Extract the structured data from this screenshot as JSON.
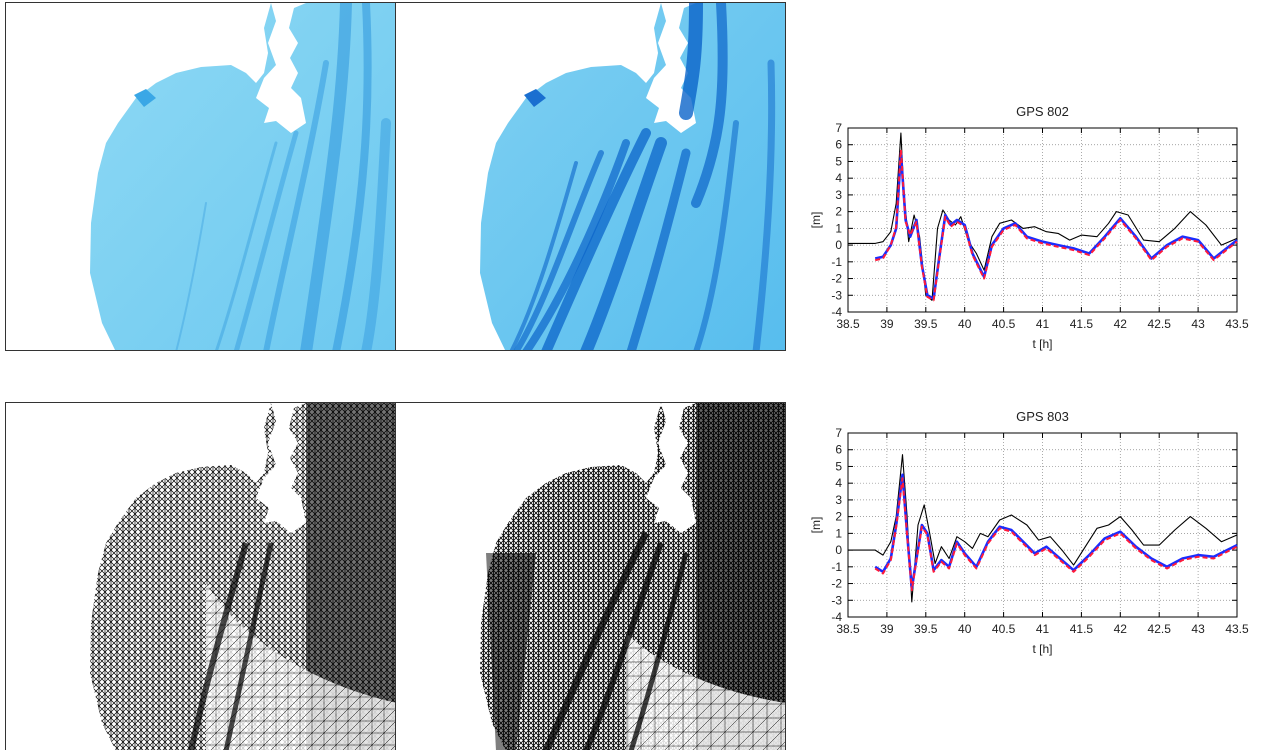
{
  "colors": {
    "water_light": "#7fd3f1",
    "water_mid": "#3aa7e6",
    "water_dark": "#0b64c9",
    "mesh": "#000000",
    "observed": "#000000",
    "model_blue": "#1a2cff",
    "model_red": "#ff1a3a"
  },
  "chart_data": [
    {
      "type": "line",
      "title": "GPS 802",
      "xlabel": "t [h]",
      "ylabel": "[m]",
      "xlim": [
        38.5,
        43.5
      ],
      "ylim": [
        -4,
        7
      ],
      "xticks": [
        "38.5",
        "39",
        "39.5",
        "40",
        "40.5",
        "41",
        "41.5",
        "42",
        "42.5",
        "43",
        "43.5"
      ],
      "yticks": [
        "-4",
        "-3",
        "-2",
        "-1",
        "0",
        "1",
        "2",
        "3",
        "4",
        "5",
        "6",
        "7"
      ],
      "grid": true,
      "series": [
        {
          "color": "#000000",
          "x": [
            38.5,
            38.85,
            38.95,
            39.05,
            39.12,
            39.18,
            39.22,
            39.28,
            39.35,
            39.42,
            39.5,
            39.58,
            39.65,
            39.72,
            39.8,
            39.88,
            39.95,
            40.05,
            40.15,
            40.25,
            40.35,
            40.45,
            40.6,
            40.75,
            40.9,
            41.05,
            41.2,
            41.35,
            41.5,
            41.7,
            41.85,
            41.95,
            42.1,
            42.3,
            42.5,
            42.7,
            42.9,
            43.1,
            43.3,
            43.5
          ],
          "y": [
            0.1,
            0.1,
            0.2,
            0.8,
            2.5,
            6.7,
            3.0,
            0.2,
            1.8,
            0.5,
            -3.0,
            -3.3,
            1.0,
            2.1,
            1.5,
            1.2,
            1.7,
            0.2,
            -0.5,
            -1.5,
            0.5,
            1.3,
            1.5,
            1.0,
            1.1,
            0.8,
            0.7,
            0.3,
            0.6,
            0.5,
            1.3,
            2.0,
            1.8,
            0.3,
            0.2,
            1.0,
            2.0,
            1.2,
            0.0,
            0.4
          ]
        },
        {
          "color": "#1a2cff",
          "x": [
            38.85,
            38.95,
            39.05,
            39.12,
            39.18,
            39.24,
            39.3,
            39.38,
            39.45,
            39.52,
            39.6,
            39.68,
            39.75,
            39.82,
            39.9,
            40.0,
            40.1,
            40.25,
            40.35,
            40.5,
            40.65,
            40.8,
            41.0,
            41.2,
            41.4,
            41.6,
            41.8,
            42.0,
            42.2,
            42.4,
            42.6,
            42.8,
            43.0,
            43.2,
            43.5
          ],
          "y": [
            -0.8,
            -0.7,
            0.0,
            1.0,
            5.5,
            1.5,
            0.5,
            1.5,
            -1.2,
            -3.0,
            -3.2,
            -0.5,
            1.8,
            1.2,
            1.5,
            1.2,
            -0.5,
            -1.9,
            0.0,
            1.0,
            1.3,
            0.5,
            0.2,
            0.0,
            -0.2,
            -0.5,
            0.5,
            1.6,
            0.5,
            -0.8,
            0.0,
            0.5,
            0.3,
            -0.8,
            0.3
          ]
        },
        {
          "color": "#ff1a3a",
          "x": [
            38.85,
            38.95,
            39.05,
            39.12,
            39.18,
            39.24,
            39.3,
            39.38,
            39.45,
            39.52,
            39.6,
            39.68,
            39.75,
            39.82,
            39.9,
            40.0,
            40.1,
            40.25,
            40.35,
            40.5,
            40.65,
            40.8,
            41.0,
            41.2,
            41.4,
            41.6,
            41.8,
            42.0,
            42.2,
            42.4,
            42.6,
            42.8,
            43.0,
            43.2,
            43.5
          ],
          "y": [
            -0.9,
            -0.8,
            0.0,
            1.1,
            5.7,
            1.4,
            0.6,
            1.4,
            -1.3,
            -3.1,
            -3.3,
            -0.6,
            1.7,
            1.1,
            1.4,
            1.1,
            -0.6,
            -2.0,
            -0.1,
            0.9,
            1.2,
            0.4,
            0.1,
            -0.1,
            -0.3,
            -0.6,
            0.4,
            1.5,
            0.4,
            -0.9,
            -0.1,
            0.4,
            0.2,
            -0.9,
            0.2
          ]
        }
      ]
    },
    {
      "type": "line",
      "title": "GPS 803",
      "xlabel": "t [h]",
      "ylabel": "[m]",
      "xlim": [
        38.5,
        43.5
      ],
      "ylim": [
        -4,
        7
      ],
      "xticks": [
        "38.5",
        "39",
        "39.5",
        "40",
        "40.5",
        "41",
        "41.5",
        "42",
        "42.5",
        "43",
        "43.5"
      ],
      "yticks": [
        "-4",
        "-3",
        "-2",
        "-1",
        "0",
        "1",
        "2",
        "3",
        "4",
        "5",
        "6",
        "7"
      ],
      "grid": true,
      "series": [
        {
          "color": "#000000",
          "x": [
            38.5,
            38.85,
            38.95,
            39.05,
            39.12,
            39.2,
            39.26,
            39.32,
            39.4,
            39.48,
            39.55,
            39.62,
            39.7,
            39.8,
            39.9,
            40.0,
            40.1,
            40.2,
            40.3,
            40.45,
            40.6,
            40.8,
            40.95,
            41.1,
            41.25,
            41.4,
            41.55,
            41.7,
            41.85,
            42.0,
            42.15,
            42.3,
            42.5,
            42.7,
            42.9,
            43.1,
            43.3,
            43.5
          ],
          "y": [
            0.0,
            0.0,
            -0.3,
            0.5,
            2.0,
            5.7,
            2.0,
            -3.1,
            1.5,
            2.7,
            1.0,
            -0.8,
            0.2,
            -0.5,
            0.8,
            0.5,
            0.1,
            1.0,
            0.8,
            1.8,
            2.1,
            1.5,
            0.6,
            0.8,
            0.0,
            -0.9,
            0.2,
            1.3,
            1.5,
            2.0,
            1.2,
            0.3,
            0.3,
            1.2,
            2.0,
            1.3,
            0.5,
            0.9
          ]
        },
        {
          "color": "#1a2cff",
          "x": [
            38.85,
            38.95,
            39.05,
            39.12,
            39.2,
            39.26,
            39.32,
            39.38,
            39.45,
            39.52,
            39.6,
            39.7,
            39.8,
            39.9,
            40.0,
            40.15,
            40.3,
            40.45,
            40.6,
            40.75,
            40.9,
            41.05,
            41.2,
            41.4,
            41.6,
            41.8,
            42.0,
            42.2,
            42.4,
            42.6,
            42.8,
            43.0,
            43.2,
            43.5
          ],
          "y": [
            -1.0,
            -1.3,
            -0.5,
            1.5,
            4.5,
            1.0,
            -2.3,
            -0.5,
            1.5,
            1.0,
            -1.2,
            -0.6,
            -1.0,
            0.5,
            -0.2,
            -1.0,
            0.5,
            1.4,
            1.2,
            0.5,
            -0.2,
            0.2,
            -0.4,
            -1.2,
            -0.3,
            0.7,
            1.1,
            0.2,
            -0.5,
            -1.0,
            -0.5,
            -0.3,
            -0.4,
            0.3
          ]
        },
        {
          "color": "#ff1a3a",
          "x": [
            38.85,
            38.95,
            39.05,
            39.12,
            39.2,
            39.26,
            39.32,
            39.38,
            39.45,
            39.52,
            39.6,
            39.7,
            39.8,
            39.9,
            40.0,
            40.15,
            40.3,
            40.45,
            40.6,
            40.75,
            40.9,
            41.05,
            41.2,
            41.4,
            41.6,
            41.8,
            42.0,
            42.2,
            42.4,
            42.6,
            42.8,
            43.0,
            43.2,
            43.5
          ],
          "y": [
            -1.1,
            -1.4,
            -0.6,
            1.4,
            4.3,
            0.9,
            -2.4,
            -0.6,
            1.4,
            0.9,
            -1.3,
            -0.7,
            -1.1,
            0.4,
            -0.3,
            -1.1,
            0.4,
            1.3,
            1.1,
            0.4,
            -0.3,
            0.1,
            -0.5,
            -1.3,
            -0.4,
            0.6,
            1.0,
            0.1,
            -0.6,
            -1.1,
            -0.6,
            -0.4,
            -0.5,
            0.2
          ]
        }
      ]
    }
  ]
}
